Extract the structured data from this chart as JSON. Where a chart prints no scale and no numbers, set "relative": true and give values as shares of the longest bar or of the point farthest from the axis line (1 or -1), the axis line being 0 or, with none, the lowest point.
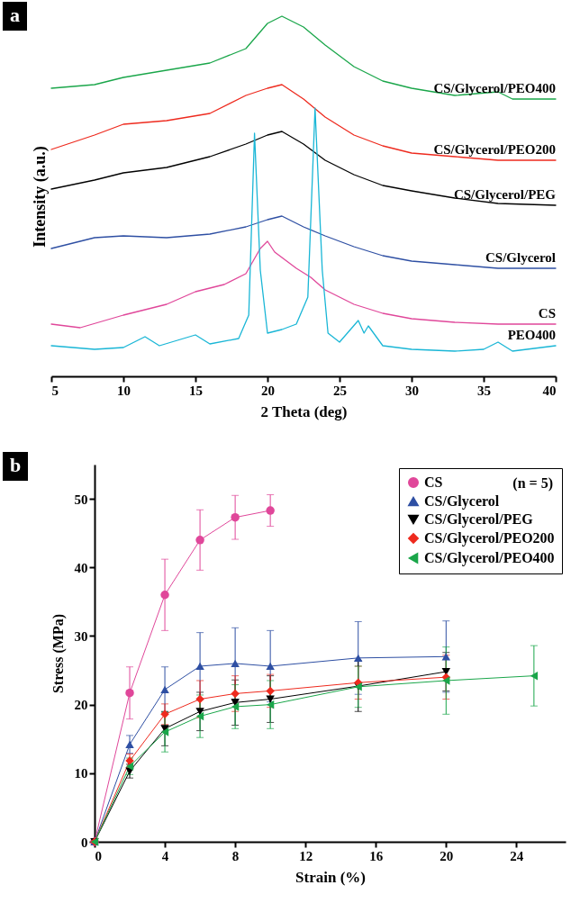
{
  "chart_data": [
    {
      "type": "line",
      "title": "a",
      "relative": true,
      "xlabel": "2 Theta (deg)",
      "ylabel": "Intensity (a.u.)",
      "xlim": [
        5,
        40
      ],
      "xticks": [
        5,
        10,
        15,
        20,
        25,
        30,
        35,
        40
      ],
      "tick_labels": "x",
      "series": [
        {
          "name": "CS/Glycerol/PEO400",
          "color": "#1aa64a",
          "x": [
            5,
            8,
            10,
            13,
            16,
            18.5,
            20,
            21,
            22.5,
            24,
            26,
            28,
            30,
            33,
            36,
            37,
            40
          ],
          "values": [
            0.8,
            0.81,
            0.83,
            0.85,
            0.87,
            0.91,
            0.98,
            1,
            0.97,
            0.92,
            0.86,
            0.82,
            0.8,
            0.78,
            0.79,
            0.77,
            0.77
          ]
        },
        {
          "name": "CS/Glycerol/PEO200",
          "color": "#ee2a1e",
          "x": [
            5,
            8,
            10,
            13,
            16,
            18.5,
            20,
            21,
            22.5,
            24,
            26,
            28,
            30,
            33,
            36,
            40
          ],
          "values": [
            0.63,
            0.67,
            0.7,
            0.71,
            0.73,
            0.78,
            0.8,
            0.81,
            0.77,
            0.72,
            0.67,
            0.64,
            0.62,
            0.61,
            0.6,
            0.6
          ]
        },
        {
          "name": "CS/Glycerol/PEG",
          "color": "#000000",
          "x": [
            5,
            8,
            10,
            13,
            16,
            18.5,
            20,
            21,
            22.5,
            24,
            26,
            28,
            30,
            33,
            36,
            40
          ],
          "values": [
            0.52,
            0.545,
            0.565,
            0.58,
            0.61,
            0.645,
            0.67,
            0.68,
            0.645,
            0.6,
            0.56,
            0.53,
            0.515,
            0.495,
            0.48,
            0.475
          ]
        },
        {
          "name": "CS/Glycerol",
          "color": "#2e4fa3",
          "x": [
            5,
            8,
            10,
            13,
            16,
            18.5,
            20,
            21,
            22.5,
            24,
            26,
            28,
            30,
            33,
            36,
            40
          ],
          "values": [
            0.355,
            0.385,
            0.39,
            0.385,
            0.395,
            0.415,
            0.435,
            0.445,
            0.415,
            0.39,
            0.36,
            0.335,
            0.32,
            0.31,
            0.3,
            0.3
          ]
        },
        {
          "name": "CS",
          "color": "#e0479a",
          "x": [
            5,
            7,
            10,
            13,
            15,
            17,
            18.5,
            19.5,
            20,
            20.5,
            21,
            22,
            23,
            24,
            26,
            28,
            30,
            33,
            36,
            40
          ],
          "values": [
            0.145,
            0.135,
            0.17,
            0.2,
            0.235,
            0.255,
            0.285,
            0.355,
            0.375,
            0.345,
            0.33,
            0.3,
            0.275,
            0.24,
            0.2,
            0.175,
            0.16,
            0.15,
            0.145,
            0.145
          ]
        },
        {
          "name": "PEO400",
          "color": "#19b6d6",
          "x": [
            5,
            8,
            10,
            11.5,
            12.5,
            15,
            16,
            18,
            18.7,
            19.1,
            19.5,
            20,
            21,
            22,
            22.8,
            23.3,
            23.8,
            24.2,
            25,
            26.3,
            26.7,
            27,
            28,
            30,
            33,
            35,
            36,
            37,
            40
          ],
          "values": [
            0.085,
            0.075,
            0.08,
            0.11,
            0.085,
            0.115,
            0.09,
            0.105,
            0.17,
            0.675,
            0.295,
            0.12,
            0.13,
            0.145,
            0.22,
            0.745,
            0.295,
            0.12,
            0.095,
            0.155,
            0.12,
            0.14,
            0.085,
            0.075,
            0.07,
            0.075,
            0.095,
            0.07,
            0.085
          ]
        }
      ]
    },
    {
      "type": "line",
      "title": "b",
      "xlabel": "Strain (%)",
      "ylabel": "Stress (MPa)",
      "xlim": [
        0,
        26.8
      ],
      "xticks": [
        0,
        4,
        8,
        12,
        16,
        20,
        24
      ],
      "ylim": [
        0,
        55
      ],
      "yticks": [
        0,
        10,
        20,
        30,
        40,
        50
      ],
      "legend": "top right",
      "annotations": [
        "(n = 5)"
      ],
      "series": [
        {
          "name": "CS",
          "color": "#e0479a",
          "marker": "circle",
          "x": [
            0,
            2,
            4,
            6,
            8,
            10
          ],
          "values": [
            0,
            21.7,
            36,
            44,
            47.3,
            48.3
          ],
          "errors": [
            null,
            3.8,
            5.2,
            4.4,
            3.2,
            2.3
          ]
        },
        {
          "name": "CS/Glycerol",
          "color": "#2e4fa3",
          "marker": "triangle",
          "x": [
            0,
            2,
            4,
            6,
            8,
            10,
            15,
            20
          ],
          "values": [
            0,
            14.2,
            22.2,
            25.6,
            26,
            25.6,
            26.8,
            27
          ],
          "errors": [
            null,
            1.3,
            3.3,
            4.9,
            5.2,
            5.2,
            5.3,
            5.2
          ]
        },
        {
          "name": "CS/Glycerol/PEG",
          "color": "#000000",
          "marker": "triangle-down",
          "x": [
            0,
            2,
            4,
            6,
            8,
            10,
            15,
            20
          ],
          "values": [
            0,
            10.3,
            16.5,
            19,
            20.3,
            20.8,
            22.7,
            24.8
          ],
          "errors": [
            null,
            1,
            2.5,
            2.8,
            3.3,
            3.4,
            3.7,
            2.8
          ]
        },
        {
          "name": "CS/Glycerol/PEO200",
          "color": "#ee2a1e",
          "marker": "diamond",
          "x": [
            0,
            2,
            4,
            6,
            8,
            10,
            15,
            20
          ],
          "values": [
            0,
            11.8,
            18.6,
            20.8,
            21.6,
            22,
            23.2,
            24
          ],
          "errors": [
            null,
            1,
            1.5,
            2.7,
            2.6,
            2.4,
            2.4,
            3.2
          ]
        },
        {
          "name": "CS/Glycerol/PEO400",
          "color": "#1aa64a",
          "marker": "triangle-left",
          "x": [
            0,
            2,
            4,
            6,
            8,
            10,
            15,
            20,
            25
          ],
          "values": [
            0,
            11,
            16,
            18.3,
            19.7,
            20,
            22.6,
            23.5,
            24.2
          ],
          "errors": [
            null,
            1.2,
            2.9,
            3.1,
            3.2,
            3.5,
            3,
            4.9,
            4.4
          ]
        }
      ]
    }
  ]
}
